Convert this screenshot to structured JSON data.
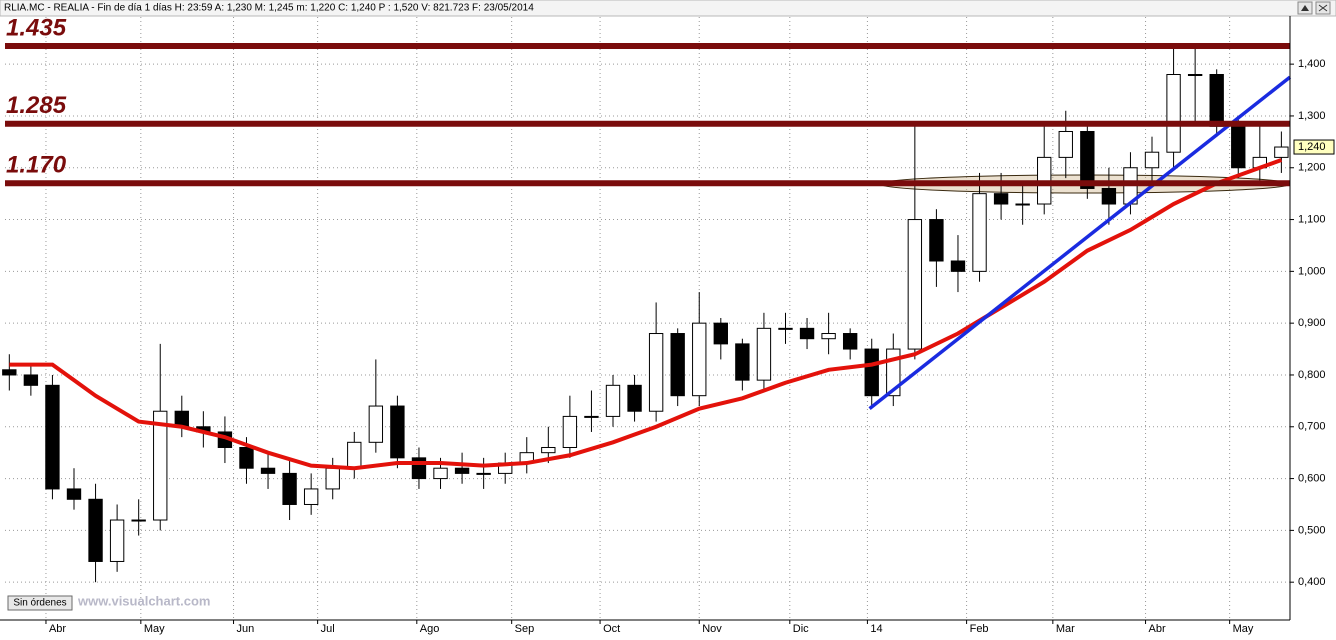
{
  "chart_data": {
    "type": "candlestick",
    "title": "RLIA.MC - REALIA - Fin de día 1 días H: 23:59 A: 1,230 M: 1,245 m: 1,220 C: 1,240 P : 1,520 V: 821.723 F: 23/05/2014",
    "x": [
      0,
      1,
      2,
      3,
      4,
      5,
      6,
      7,
      8,
      9,
      10,
      11,
      12,
      13,
      14,
      15,
      16,
      17,
      18,
      19,
      20,
      21,
      22,
      23,
      24,
      25,
      26,
      27,
      28,
      29,
      30,
      31,
      32,
      33,
      34,
      35,
      36,
      37,
      38,
      39,
      40,
      41,
      42,
      43,
      44,
      45,
      46,
      47,
      48,
      49,
      50,
      51,
      52,
      53,
      54,
      55,
      56,
      57,
      58,
      59
    ],
    "open": [
      0.81,
      0.8,
      0.78,
      0.58,
      0.56,
      0.44,
      0.52,
      0.52,
      0.73,
      0.7,
      0.69,
      0.66,
      0.62,
      0.61,
      0.55,
      0.58,
      0.62,
      0.67,
      0.74,
      0.64,
      0.6,
      0.62,
      0.61,
      0.61,
      0.63,
      0.65,
      0.66,
      0.72,
      0.72,
      0.78,
      0.73,
      0.88,
      0.76,
      0.9,
      0.86,
      0.79,
      0.89,
      0.89,
      0.87,
      0.88,
      0.85,
      0.76,
      0.85,
      1.1,
      1.02,
      1.0,
      1.15,
      1.13,
      1.13,
      1.22,
      1.27,
      1.16,
      1.13,
      1.2,
      1.23,
      1.38,
      1.38,
      1.28,
      1.2,
      1.22
    ],
    "high": [
      0.84,
      0.82,
      0.8,
      0.62,
      0.59,
      0.55,
      0.56,
      0.86,
      0.76,
      0.73,
      0.72,
      0.68,
      0.65,
      0.64,
      0.61,
      0.64,
      0.69,
      0.83,
      0.76,
      0.66,
      0.64,
      0.65,
      0.64,
      0.65,
      0.68,
      0.7,
      0.76,
      0.77,
      0.8,
      0.8,
      0.94,
      0.89,
      0.96,
      0.91,
      0.87,
      0.92,
      0.92,
      0.91,
      0.92,
      0.89,
      0.87,
      0.88,
      1.28,
      1.12,
      1.07,
      1.19,
      1.19,
      1.17,
      1.28,
      1.31,
      1.29,
      1.2,
      1.23,
      1.26,
      1.43,
      1.43,
      1.39,
      1.3,
      1.29,
      1.27
    ],
    "low": [
      0.77,
      0.76,
      0.56,
      0.54,
      0.4,
      0.42,
      0.49,
      0.5,
      0.68,
      0.66,
      0.63,
      0.59,
      0.58,
      0.52,
      0.53,
      0.56,
      0.6,
      0.65,
      0.62,
      0.58,
      0.58,
      0.59,
      0.58,
      0.59,
      0.61,
      0.63,
      0.64,
      0.69,
      0.7,
      0.71,
      0.71,
      0.74,
      0.74,
      0.83,
      0.77,
      0.77,
      0.86,
      0.85,
      0.84,
      0.83,
      0.74,
      0.74,
      0.83,
      0.97,
      0.96,
      0.98,
      1.1,
      1.09,
      1.11,
      1.18,
      1.14,
      1.09,
      1.11,
      1.17,
      1.2,
      1.29,
      1.26,
      1.18,
      1.17,
      1.19
    ],
    "close": [
      0.8,
      0.78,
      0.58,
      0.56,
      0.44,
      0.52,
      0.52,
      0.73,
      0.7,
      0.69,
      0.66,
      0.62,
      0.61,
      0.55,
      0.58,
      0.62,
      0.67,
      0.74,
      0.64,
      0.6,
      0.62,
      0.61,
      0.61,
      0.63,
      0.65,
      0.66,
      0.72,
      0.72,
      0.78,
      0.73,
      0.88,
      0.76,
      0.9,
      0.86,
      0.79,
      0.89,
      0.89,
      0.87,
      0.88,
      0.85,
      0.76,
      0.85,
      1.1,
      1.02,
      1.0,
      1.15,
      1.13,
      1.13,
      1.22,
      1.27,
      1.16,
      1.13,
      1.2,
      1.23,
      1.38,
      1.38,
      1.28,
      1.2,
      1.22,
      1.24
    ],
    "up_color": "#ffffff",
    "down_color": "#000000",
    "moving_average": {
      "color": "#e3120b",
      "x": [
        0,
        2,
        4,
        6,
        8,
        10,
        12,
        14,
        16,
        18,
        20,
        22,
        24,
        26,
        28,
        30,
        32,
        34,
        36,
        38,
        40,
        42,
        44,
        46,
        48,
        50,
        52,
        54,
        56,
        58,
        59
      ],
      "values": [
        0.82,
        0.82,
        0.76,
        0.71,
        0.7,
        0.68,
        0.65,
        0.625,
        0.62,
        0.63,
        0.63,
        0.625,
        0.63,
        0.645,
        0.67,
        0.7,
        0.735,
        0.755,
        0.785,
        0.81,
        0.82,
        0.84,
        0.88,
        0.93,
        0.98,
        1.04,
        1.08,
        1.13,
        1.17,
        1.2,
        1.215
      ]
    },
    "trendline": {
      "color": "#1a2be0",
      "x": [
        39.9,
        59.4
      ],
      "values": [
        0.735,
        1.375
      ]
    },
    "levels": [
      1.435,
      1.285,
      {
        "value": 1.17,
        "label": "1.170"
      }
    ],
    "level_color": "#7a0c0c",
    "last_label": {
      "value": 1.24,
      "label": "1,240"
    },
    "xlim": [
      -0.2,
      59.4
    ],
    "xticks": [
      {
        "value": 1.7,
        "label": "Abr"
      },
      {
        "value": 6.1,
        "label": "May"
      },
      {
        "value": 10.4,
        "label": "Jun"
      },
      {
        "value": 14.3,
        "label": "Jul"
      },
      {
        "value": 18.9,
        "label": "Ago"
      },
      {
        "value": 23.3,
        "label": "Sep"
      },
      {
        "value": 27.4,
        "label": "Oct"
      },
      {
        "value": 32.0,
        "label": "Nov"
      },
      {
        "value": 36.2,
        "label": "Dic"
      },
      {
        "value": 39.8,
        "label": "14"
      },
      {
        "value": 44.4,
        "label": "Feb"
      },
      {
        "value": 48.4,
        "label": "Mar"
      },
      {
        "value": 52.7,
        "label": "Abr"
      },
      {
        "value": 56.6,
        "label": "May"
      }
    ],
    "ylim": [
      0.327,
      1.491
    ],
    "yticks": [
      {
        "value": 0.4,
        "label": "0,400"
      },
      {
        "value": 0.5,
        "label": "0,500"
      },
      {
        "value": 0.6,
        "label": "0,600"
      },
      {
        "value": 0.7,
        "label": "0,700"
      },
      {
        "value": 0.8,
        "label": "0,800"
      },
      {
        "value": 0.9,
        "label": "0,900"
      },
      {
        "value": 1.0,
        "label": "1,000"
      },
      {
        "value": 1.1,
        "label": "1,100"
      },
      {
        "value": 1.2,
        "label": "1,200"
      },
      {
        "value": 1.3,
        "label": "1,300"
      },
      {
        "value": 1.4,
        "label": "1,400"
      }
    ],
    "grid": true,
    "button": "Sin órdenes",
    "watermark": "www.visualchart.com"
  }
}
